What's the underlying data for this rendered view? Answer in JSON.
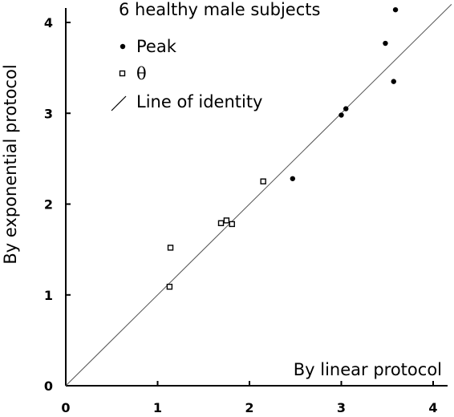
{
  "chart_data": {
    "type": "scatter",
    "subtitle": "6 healthy male subjects",
    "xlabel": "By linear protocol",
    "ylabel": "By exponential protocol",
    "xlim": [
      0,
      4.2
    ],
    "ylim": [
      0,
      4.2
    ],
    "x_ticks": [
      "0",
      "1",
      "2",
      "3",
      "4"
    ],
    "y_ticks": [
      "0",
      "1",
      "2",
      "3",
      "4"
    ],
    "legend_position": "top-center",
    "series": [
      {
        "name": "Peak",
        "marker": "filled-circle",
        "points": [
          {
            "x": 2.47,
            "y": 2.28
          },
          {
            "x": 3.0,
            "y": 2.98
          },
          {
            "x": 3.05,
            "y": 3.05
          },
          {
            "x": 3.48,
            "y": 3.77
          },
          {
            "x": 3.57,
            "y": 3.35
          },
          {
            "x": 3.59,
            "y": 4.14
          }
        ]
      },
      {
        "name": "θ",
        "marker": "open-square",
        "points": [
          {
            "x": 1.13,
            "y": 1.09
          },
          {
            "x": 1.14,
            "y": 1.52
          },
          {
            "x": 1.69,
            "y": 1.79
          },
          {
            "x": 1.75,
            "y": 1.82
          },
          {
            "x": 1.81,
            "y": 1.78
          },
          {
            "x": 2.15,
            "y": 2.25
          }
        ]
      }
    ],
    "reference_line": {
      "name": "Line of identity",
      "from": [
        0,
        0
      ],
      "to": [
        4.2,
        4.2
      ]
    },
    "colors": {
      "axis": "#000000",
      "identity_line": "#555555",
      "marker": "#000000"
    }
  }
}
